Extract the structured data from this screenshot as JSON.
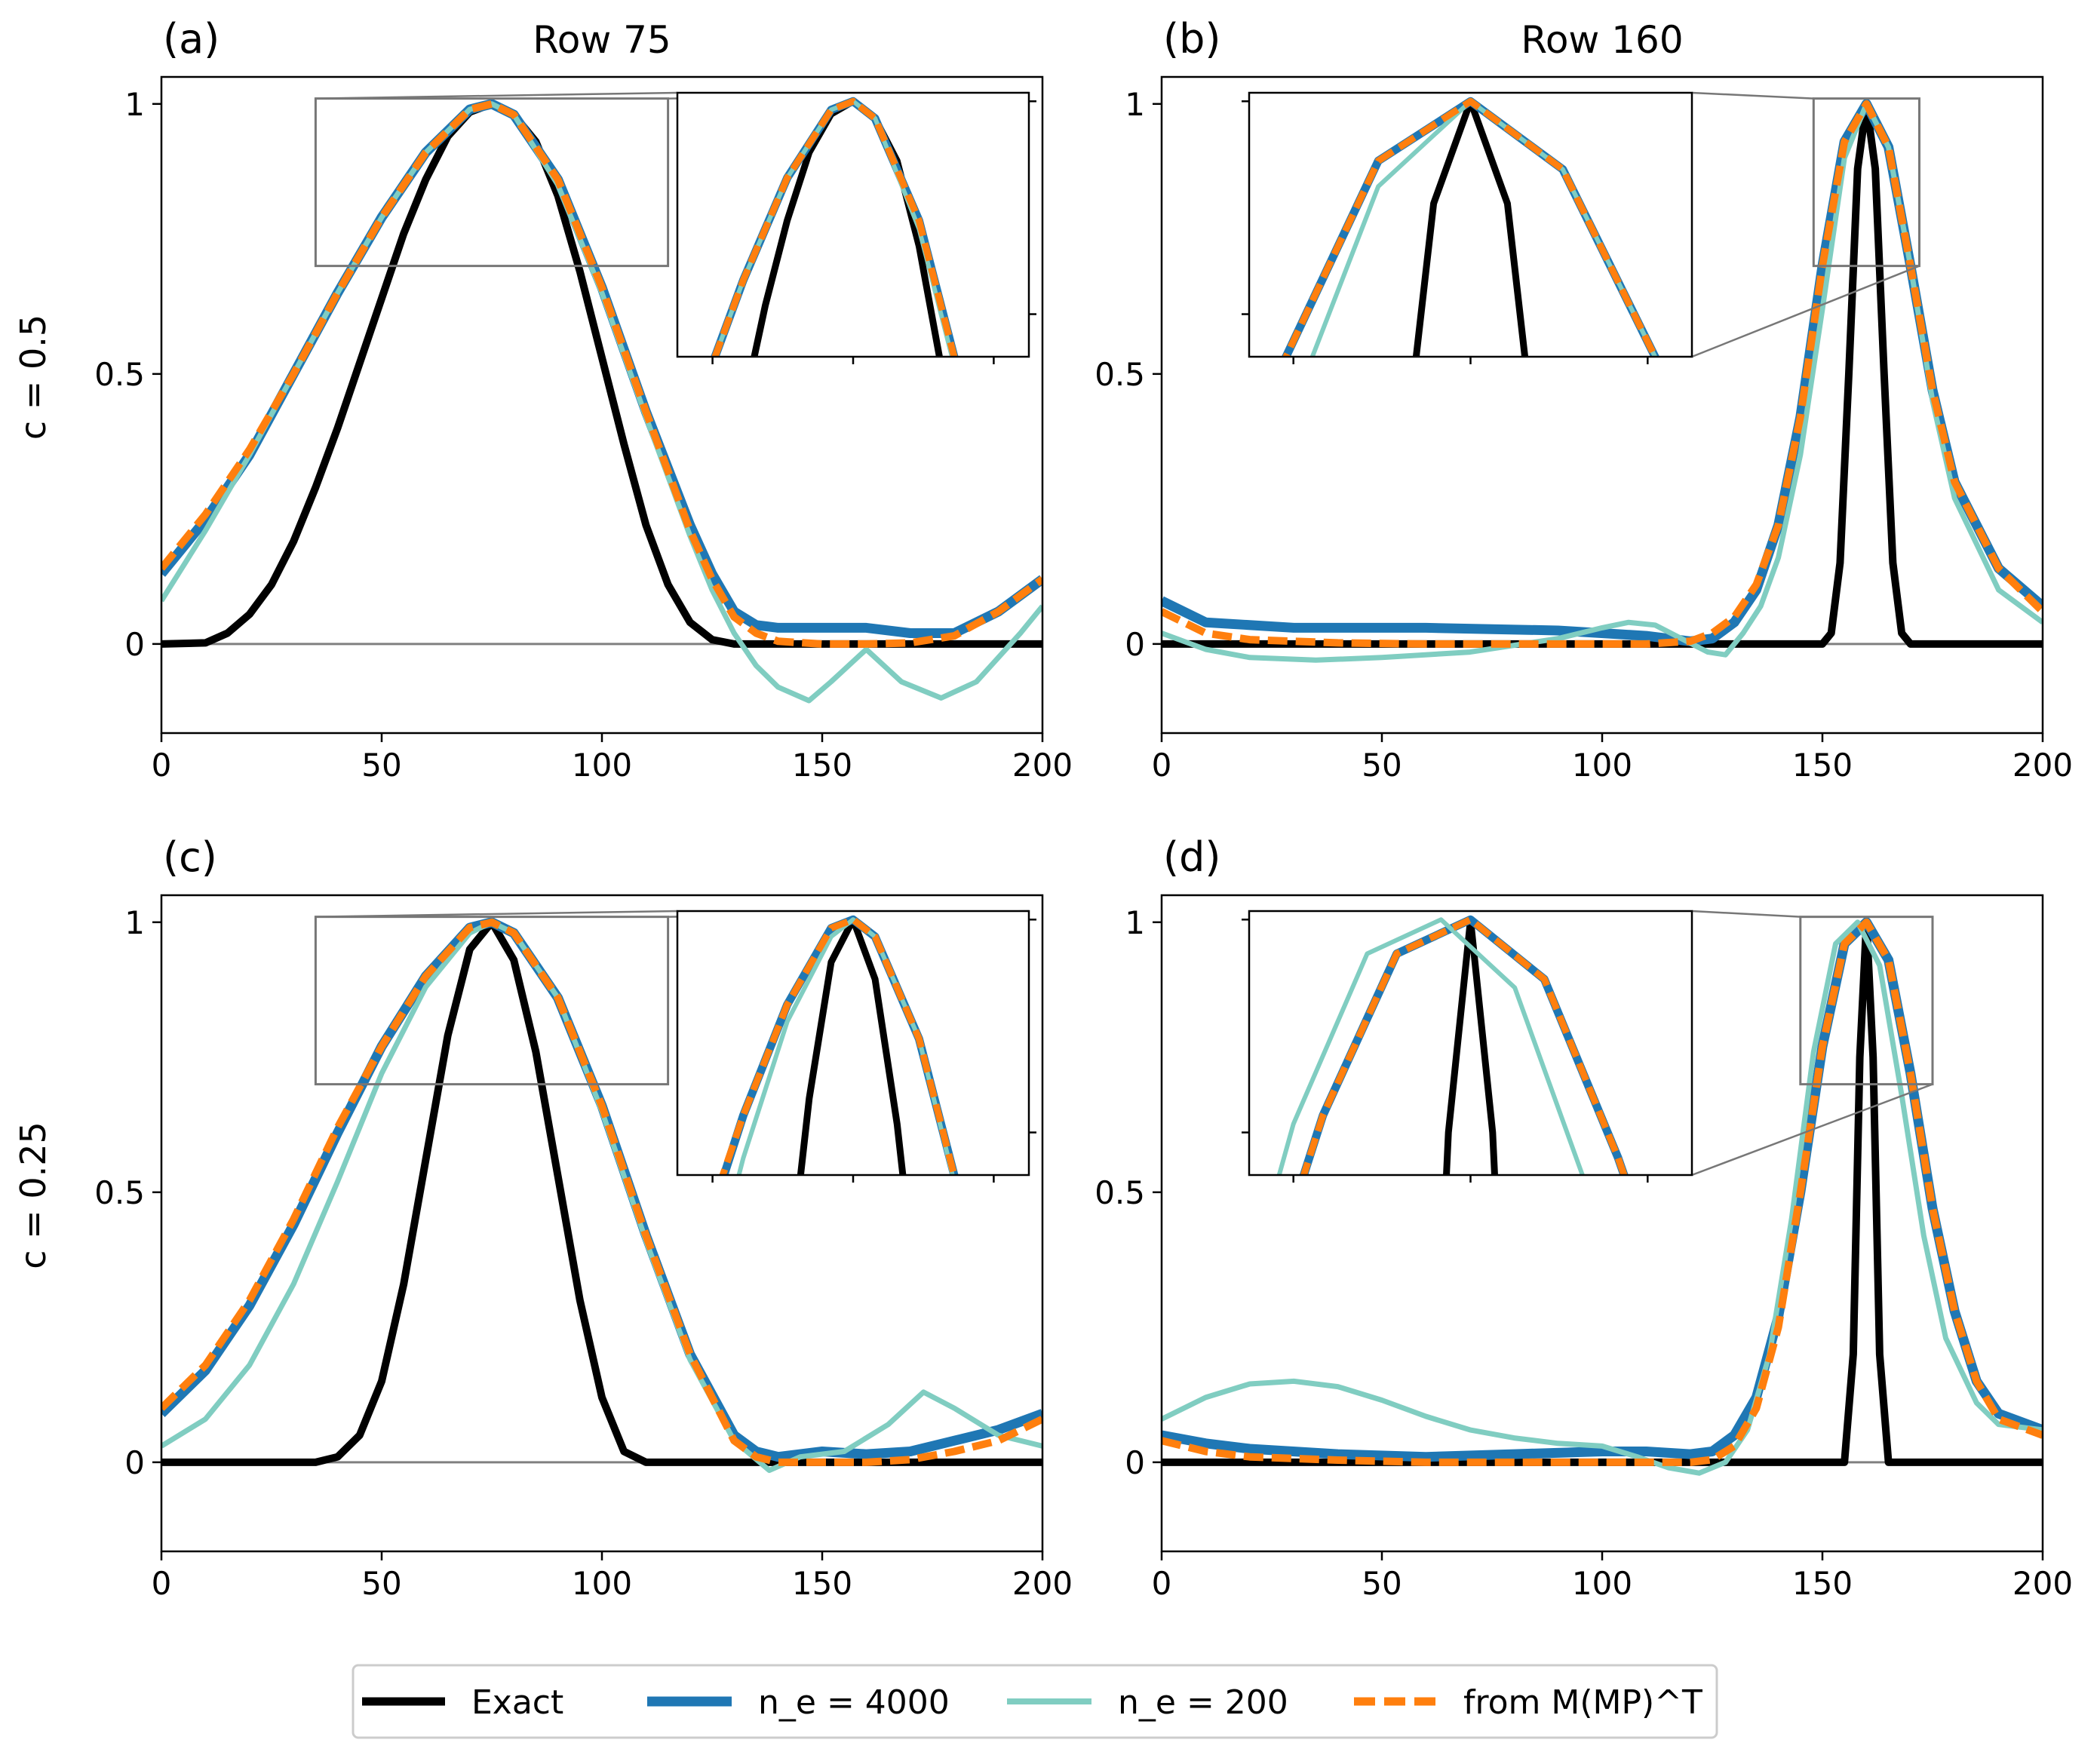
{
  "figure": {
    "row_labels": [
      "c = 0.5",
      "c = 0.25"
    ]
  },
  "colors": {
    "exact": "#000000",
    "ne4000": "#1f77b4",
    "ne200": "#80cdc1",
    "mmp": "#ff7f0e"
  },
  "legend": {
    "items": [
      {
        "key": "exact",
        "label": "Exact"
      },
      {
        "key": "ne4000",
        "label": "n_e = 4000"
      },
      {
        "key": "ne200",
        "label": "n_e = 200"
      },
      {
        "key": "mmp",
        "label": "from M(MP)^T"
      }
    ]
  },
  "chart_data": [
    {
      "panel": "(a)",
      "title": "Row 75",
      "type": "line",
      "xlim": [
        0,
        200
      ],
      "ylim": [
        -0.165,
        1.05
      ],
      "xticks": [
        0,
        50,
        100,
        150,
        200
      ],
      "yticks": [
        0,
        0.5,
        1
      ],
      "ytick_labels": [
        "0",
        "0.5",
        "1"
      ],
      "inset": {
        "xlim": [
          35,
          115
        ],
        "ylim": [
          0.7,
          1.01
        ],
        "placement": "top-right"
      },
      "series": [
        {
          "name": "Exact",
          "key": "exact",
          "x": [
            0,
            10,
            15,
            20,
            25,
            30,
            35,
            40,
            45,
            50,
            55,
            60,
            65,
            70,
            75,
            80,
            85,
            90,
            95,
            100,
            105,
            110,
            115,
            120,
            125,
            130,
            140,
            150,
            160,
            170,
            180,
            190,
            200
          ],
          "y": [
            0,
            0.002,
            0.02,
            0.055,
            0.11,
            0.19,
            0.29,
            0.4,
            0.52,
            0.64,
            0.76,
            0.86,
            0.94,
            0.985,
            1.0,
            0.98,
            0.93,
            0.83,
            0.69,
            0.53,
            0.37,
            0.22,
            0.11,
            0.04,
            0.008,
            0,
            0,
            0,
            0,
            0,
            0,
            0,
            0
          ]
        },
        {
          "name": "n_e = 4000",
          "key": "ne4000",
          "x": [
            0,
            10,
            20,
            30,
            40,
            50,
            60,
            70,
            75,
            80,
            90,
            100,
            110,
            120,
            125,
            130,
            135,
            140,
            150,
            160,
            170,
            180,
            190,
            200
          ],
          "y": [
            0.13,
            0.23,
            0.35,
            0.5,
            0.65,
            0.79,
            0.91,
            0.99,
            1.0,
            0.98,
            0.86,
            0.66,
            0.43,
            0.22,
            0.13,
            0.06,
            0.035,
            0.03,
            0.03,
            0.03,
            0.02,
            0.02,
            0.06,
            0.12
          ]
        },
        {
          "name": "n_e = 200",
          "key": "ne200",
          "x": [
            0,
            10,
            20,
            30,
            40,
            50,
            60,
            70,
            75,
            80,
            90,
            100,
            110,
            120,
            125,
            130,
            135,
            140,
            147,
            152,
            160,
            168,
            177,
            185,
            195,
            200
          ],
          "y": [
            0.08,
            0.21,
            0.35,
            0.5,
            0.65,
            0.79,
            0.91,
            0.99,
            1.0,
            0.98,
            0.85,
            0.65,
            0.42,
            0.2,
            0.1,
            0.02,
            -0.04,
            -0.08,
            -0.105,
            -0.07,
            -0.01,
            -0.07,
            -0.1,
            -0.07,
            0.02,
            0.07
          ]
        },
        {
          "name": "from M(MP)^T",
          "key": "mmp",
          "x": [
            0,
            10,
            20,
            30,
            40,
            50,
            60,
            70,
            75,
            80,
            90,
            100,
            110,
            120,
            125,
            130,
            135,
            140,
            150,
            160,
            170,
            180,
            190,
            200
          ],
          "y": [
            0.14,
            0.24,
            0.36,
            0.5,
            0.65,
            0.79,
            0.91,
            0.99,
            1.0,
            0.98,
            0.86,
            0.66,
            0.43,
            0.21,
            0.12,
            0.05,
            0.02,
            0.005,
            0,
            0,
            0.002,
            0.015,
            0.06,
            0.12
          ]
        }
      ]
    },
    {
      "panel": "(b)",
      "title": "Row 160",
      "type": "line",
      "xlim": [
        0,
        200
      ],
      "ylim": [
        -0.165,
        1.05
      ],
      "xticks": [
        0,
        50,
        100,
        150,
        200
      ],
      "yticks": [
        0,
        0.5,
        1
      ],
      "ytick_labels": [
        "0",
        "0.5",
        "1"
      ],
      "inset": {
        "xlim": [
          148,
          172
        ],
        "ylim": [
          0.7,
          1.01
        ],
        "placement": "top-left"
      },
      "series": [
        {
          "name": "Exact",
          "key": "exact",
          "x": [
            0,
            100,
            150,
            152,
            154,
            156,
            158,
            160,
            162,
            164,
            166,
            168,
            170,
            200
          ],
          "y": [
            0,
            0,
            0,
            0.02,
            0.15,
            0.5,
            0.88,
            1.0,
            0.88,
            0.5,
            0.15,
            0.02,
            0,
            0
          ]
        },
        {
          "name": "n_e = 4000",
          "key": "ne4000",
          "x": [
            0,
            10,
            30,
            60,
            90,
            110,
            120,
            125,
            130,
            135,
            140,
            145,
            150,
            155,
            160,
            165,
            170,
            175,
            180,
            190,
            200
          ],
          "y": [
            0.08,
            0.04,
            0.03,
            0.03,
            0.025,
            0.015,
            0.005,
            0.01,
            0.04,
            0.1,
            0.22,
            0.42,
            0.7,
            0.93,
            1.0,
            0.92,
            0.7,
            0.47,
            0.3,
            0.14,
            0.07
          ]
        },
        {
          "name": "n_e = 200",
          "key": "ne200",
          "x": [
            0,
            10,
            20,
            35,
            50,
            70,
            90,
            100,
            106,
            112,
            118,
            124,
            128,
            132,
            136,
            140,
            145,
            150,
            155,
            160,
            165,
            170,
            175,
            180,
            190,
            200
          ],
          "y": [
            0.02,
            -0.01,
            -0.025,
            -0.03,
            -0.025,
            -0.015,
            0.01,
            0.03,
            0.04,
            0.035,
            0.01,
            -0.015,
            -0.02,
            0.02,
            0.07,
            0.16,
            0.35,
            0.62,
            0.9,
            1.0,
            0.92,
            0.7,
            0.45,
            0.27,
            0.1,
            0.04
          ]
        },
        {
          "name": "from M(MP)^T",
          "key": "mmp",
          "x": [
            0,
            10,
            20,
            40,
            60,
            80,
            100,
            110,
            120,
            125,
            130,
            135,
            140,
            145,
            150,
            155,
            160,
            165,
            170,
            175,
            180,
            190,
            200
          ],
          "y": [
            0.06,
            0.02,
            0.008,
            0.002,
            0,
            0,
            0,
            0,
            0.005,
            0.02,
            0.05,
            0.11,
            0.22,
            0.42,
            0.7,
            0.93,
            1.0,
            0.92,
            0.7,
            0.47,
            0.3,
            0.14,
            0.06
          ]
        }
      ]
    },
    {
      "panel": "(c)",
      "type": "line",
      "xlim": [
        0,
        200
      ],
      "ylim": [
        -0.165,
        1.05
      ],
      "xticks": [
        0,
        50,
        100,
        150,
        200
      ],
      "yticks": [
        0,
        0.5,
        1
      ],
      "ytick_labels": [
        "0",
        "0.5",
        "1"
      ],
      "inset": {
        "xlim": [
          35,
          115
        ],
        "ylim": [
          0.7,
          1.01
        ],
        "placement": "top-right"
      },
      "series": [
        {
          "name": "Exact",
          "key": "exact",
          "x": [
            0,
            35,
            40,
            45,
            50,
            55,
            60,
            65,
            70,
            75,
            80,
            85,
            90,
            95,
            100,
            105,
            110,
            200
          ],
          "y": [
            0,
            0,
            0.01,
            0.05,
            0.15,
            0.33,
            0.56,
            0.79,
            0.95,
            1.0,
            0.93,
            0.76,
            0.53,
            0.3,
            0.12,
            0.02,
            0,
            0
          ]
        },
        {
          "name": "n_e = 4000",
          "key": "ne4000",
          "x": [
            0,
            10,
            20,
            30,
            40,
            50,
            60,
            70,
            75,
            80,
            90,
            100,
            110,
            120,
            130,
            135,
            140,
            150,
            160,
            170,
            180,
            190,
            200
          ],
          "y": [
            0.09,
            0.17,
            0.29,
            0.44,
            0.61,
            0.77,
            0.9,
            0.99,
            1.0,
            0.98,
            0.86,
            0.66,
            0.42,
            0.2,
            0.05,
            0.02,
            0.01,
            0.02,
            0.015,
            0.02,
            0.04,
            0.06,
            0.09
          ]
        },
        {
          "name": "n_e = 200",
          "key": "ne200",
          "x": [
            0,
            10,
            20,
            30,
            40,
            50,
            60,
            70,
            75,
            80,
            90,
            100,
            110,
            120,
            130,
            138,
            145,
            155,
            165,
            173,
            180,
            190,
            200
          ],
          "y": [
            0.03,
            0.08,
            0.18,
            0.33,
            0.52,
            0.72,
            0.88,
            0.98,
            1.0,
            0.98,
            0.86,
            0.65,
            0.41,
            0.19,
            0.04,
            -0.015,
            0.01,
            0.02,
            0.07,
            0.13,
            0.1,
            0.05,
            0.03
          ]
        },
        {
          "name": "from M(MP)^T",
          "key": "mmp",
          "x": [
            0,
            10,
            20,
            30,
            40,
            50,
            60,
            70,
            75,
            80,
            90,
            100,
            110,
            120,
            130,
            135,
            140,
            150,
            160,
            170,
            180,
            190,
            200
          ],
          "y": [
            0.1,
            0.18,
            0.3,
            0.45,
            0.62,
            0.77,
            0.9,
            0.99,
            1.0,
            0.98,
            0.86,
            0.66,
            0.42,
            0.2,
            0.04,
            0.01,
            0,
            0,
            0,
            0.005,
            0.02,
            0.04,
            0.08
          ]
        }
      ]
    },
    {
      "panel": "(d)",
      "type": "line",
      "xlim": [
        0,
        200
      ],
      "ylim": [
        -0.165,
        1.05
      ],
      "xticks": [
        0,
        50,
        100,
        150,
        200
      ],
      "yticks": [
        0,
        0.5,
        1
      ],
      "ytick_labels": [
        "0",
        "0.5",
        "1"
      ],
      "inset": {
        "xlim": [
          145,
          175
        ],
        "ylim": [
          0.7,
          1.01
        ],
        "placement": "top-left"
      },
      "series": [
        {
          "name": "Exact",
          "key": "exact",
          "x": [
            0,
            150,
            155,
            157,
            158.5,
            160,
            161.5,
            163,
            165,
            200
          ],
          "y": [
            0,
            0,
            0,
            0.2,
            0.75,
            1.0,
            0.75,
            0.2,
            0,
            0
          ]
        },
        {
          "name": "n_e = 4000",
          "key": "ne4000",
          "x": [
            0,
            10,
            20,
            40,
            60,
            80,
            100,
            110,
            120,
            125,
            130,
            135,
            140,
            145,
            150,
            155,
            160,
            165,
            170,
            175,
            180,
            185,
            190,
            200
          ],
          "y": [
            0.05,
            0.035,
            0.025,
            0.015,
            0.01,
            0.015,
            0.02,
            0.02,
            0.015,
            0.02,
            0.05,
            0.12,
            0.27,
            0.5,
            0.77,
            0.96,
            1.0,
            0.93,
            0.72,
            0.47,
            0.28,
            0.15,
            0.09,
            0.06
          ]
        },
        {
          "name": "n_e = 200",
          "key": "ne200",
          "x": [
            0,
            10,
            20,
            30,
            40,
            50,
            60,
            70,
            80,
            90,
            100,
            108,
            115,
            122,
            128,
            133,
            138,
            143,
            148,
            153,
            158,
            163,
            168,
            173,
            178,
            185,
            190,
            200
          ],
          "y": [
            0.08,
            0.12,
            0.145,
            0.15,
            0.14,
            0.115,
            0.085,
            0.06,
            0.045,
            0.035,
            0.03,
            0.01,
            -0.01,
            -0.02,
            0,
            0.06,
            0.2,
            0.45,
            0.76,
            0.96,
            1.0,
            0.92,
            0.68,
            0.42,
            0.23,
            0.11,
            0.07,
            0.06
          ]
        },
        {
          "name": "from M(MP)^T",
          "key": "mmp",
          "x": [
            0,
            10,
            20,
            40,
            60,
            80,
            100,
            110,
            120,
            125,
            130,
            135,
            140,
            145,
            150,
            155,
            160,
            165,
            170,
            175,
            180,
            185,
            190,
            200
          ],
          "y": [
            0.04,
            0.02,
            0.01,
            0.004,
            0,
            0,
            0,
            0,
            0,
            0.005,
            0.03,
            0.1,
            0.25,
            0.5,
            0.77,
            0.96,
            1.0,
            0.93,
            0.72,
            0.47,
            0.28,
            0.15,
            0.08,
            0.05
          ]
        }
      ]
    }
  ]
}
